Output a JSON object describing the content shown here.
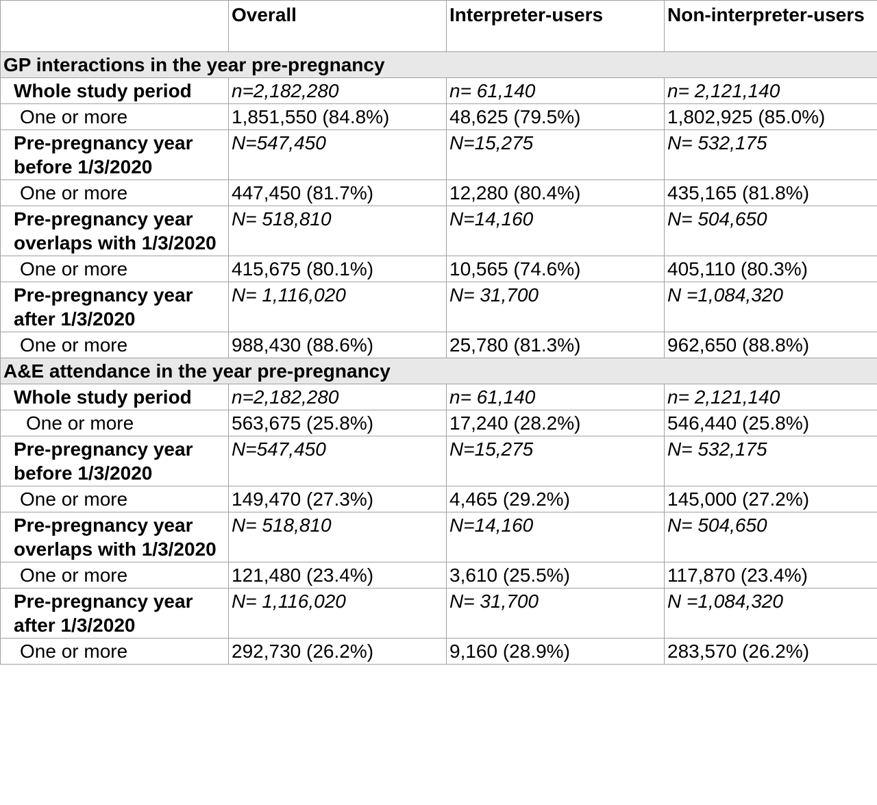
{
  "header": {
    "blank": "",
    "overall": "Overall",
    "interpreter": "Interpreter-users",
    "non_interpreter": "Non-interpreter-users"
  },
  "sections": [
    {
      "title": "GP interactions in the year pre-pregnancy",
      "groups": [
        {
          "label": "Whole study period",
          "counts": [
            "n=2,182,280",
            "n= 61,140",
            "n= 2,121,140"
          ],
          "row_label": "One or more",
          "values": [
            "1,851,550 (84.8%)",
            "48,625 (79.5%)",
            "1,802,925 (85.0%)"
          ]
        },
        {
          "label": "Pre-pregnancy year before 1/3/2020",
          "counts": [
            "N=547,450",
            "N=15,275",
            "N= 532,175"
          ],
          "row_label": "One or more",
          "values": [
            "447,450 (81.7%)",
            "12,280 (80.4%)",
            "435,165 (81.8%)"
          ]
        },
        {
          "label": "Pre-pregnancy year overlaps with 1/3/2020",
          "counts": [
            "N= 518,810",
            "N=14,160",
            "N= 504,650"
          ],
          "row_label": "One or more",
          "values": [
            "415,675 (80.1%)",
            "10,565 (74.6%)",
            "405,110 (80.3%)"
          ]
        },
        {
          "label": "Pre-pregnancy year after 1/3/2020",
          "counts": [
            "N= 1,116,020",
            "N= 31,700",
            "N =1,084,320"
          ],
          "row_label": "One or more",
          "values": [
            "988,430 (88.6%)",
            "25,780 (81.3%)",
            "962,650 (88.8%)"
          ]
        }
      ]
    },
    {
      "title": "A&E attendance in the year pre-pregnancy",
      "groups": [
        {
          "label": "Whole study period",
          "counts": [
            "n=2,182,280",
            "n= 61,140",
            "n= 2,121,140"
          ],
          "row_label": "One or more",
          "values": [
            "563,675 (25.8%)",
            "17,240 (28.2%)",
            "546,440 (25.8%)"
          ]
        },
        {
          "label": "Pre-pregnancy year before 1/3/2020",
          "counts": [
            "N=547,450",
            "N=15,275",
            "N= 532,175"
          ],
          "row_label": "One or more",
          "values": [
            "149,470 (27.3%)",
            "4,465 (29.2%)",
            "145,000 (27.2%)"
          ]
        },
        {
          "label": "Pre-pregnancy year overlaps with 1/3/2020",
          "counts": [
            "N= 518,810",
            "N=14,160",
            "N= 504,650"
          ],
          "row_label": "One or more",
          "values": [
            "121,480 (23.4%)",
            "3,610 (25.5%)",
            "117,870 (23.4%)"
          ]
        },
        {
          "label": "Pre-pregnancy year after 1/3/2020",
          "counts": [
            "N= 1,116,020",
            "N= 31,700",
            "N =1,084,320"
          ],
          "row_label": "One or more",
          "values": [
            "292,730 (26.2%)",
            "9,160 (28.9%)",
            "283,570 (26.2%)"
          ]
        }
      ]
    }
  ]
}
